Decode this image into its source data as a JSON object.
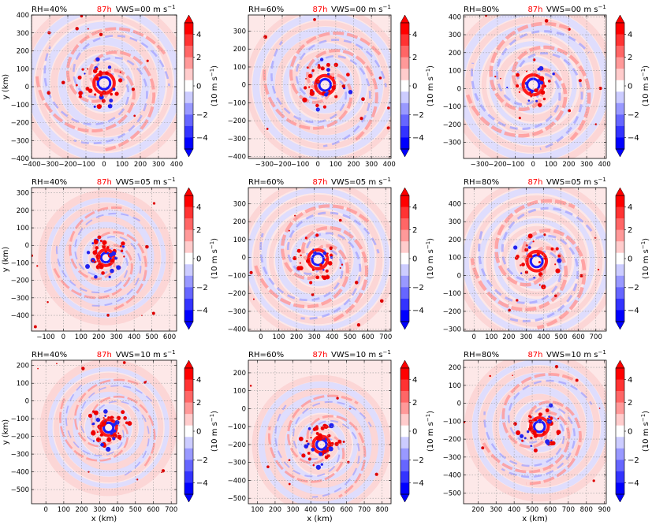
{
  "figure": {
    "colorbar": {
      "ticks": [
        "4",
        "2",
        "0",
        "−2",
        "−4"
      ],
      "label_prefix": "(10 m s",
      "label_exp": "−1",
      "label_suffix": ")",
      "colors": [
        "#ff0000",
        "#ff3333",
        "#ff6666",
        "#ff9999",
        "#ffcccc",
        "#ffffff",
        "#ccccff",
        "#9999ff",
        "#6666ff",
        "#3333ff",
        "#0000ff"
      ]
    },
    "vws_unit": "m s",
    "vws_exp": "−1"
  },
  "chart_data": [
    {
      "type": "heatmap",
      "rh": "RH=40%",
      "time": "87h",
      "vws": "VWS=00",
      "ylabel": "y (km)",
      "xlabel": "",
      "xlim": [
        -400,
        400
      ],
      "ylim": [
        -400,
        400
      ],
      "xticks": [
        -400,
        -300,
        -200,
        -100,
        0,
        100,
        200,
        300,
        400
      ],
      "yticks": [
        -400,
        -300,
        -200,
        -100,
        0,
        100,
        200,
        300,
        400
      ],
      "center": [
        0,
        20
      ],
      "extent": 400,
      "dense": 0.8
    },
    {
      "type": "heatmap",
      "rh": "RH=60%",
      "time": "87h",
      "vws": "VWS=00",
      "ylabel": "",
      "xlabel": "",
      "xlim": [
        -390,
        410
      ],
      "ylim": [
        -410,
        390
      ],
      "xticks": [
        -300,
        -200,
        -100,
        0,
        100,
        200,
        300,
        400
      ],
      "yticks": [
        -400,
        -300,
        -200,
        -100,
        0,
        100,
        200,
        300
      ],
      "center": [
        40,
        0
      ],
      "extent": 380,
      "dense": 0.8
    },
    {
      "type": "heatmap",
      "rh": "RH=80%",
      "time": "87h",
      "vws": "VWS=00",
      "ylabel": "",
      "xlabel": "",
      "xlim": [
        -390,
        410
      ],
      "ylim": [
        -390,
        410
      ],
      "xticks": [
        -300,
        -200,
        -100,
        0,
        100,
        200,
        300,
        400
      ],
      "yticks": [
        -300,
        -200,
        -100,
        0,
        100,
        200,
        300,
        400
      ],
      "center": [
        0,
        20
      ],
      "extent": 400,
      "dense": 1.0
    },
    {
      "type": "heatmap",
      "rh": "RH=40%",
      "time": "87h",
      "vws": "VWS=05",
      "ylabel": "y (km)",
      "xlabel": "",
      "xlim": [
        -180,
        640
      ],
      "ylim": [
        -490,
        330
      ],
      "xticks": [
        -100,
        0,
        100,
        200,
        300,
        400,
        500,
        600
      ],
      "yticks": [
        -400,
        -300,
        -200,
        -100,
        0,
        100,
        200,
        300
      ],
      "center": [
        240,
        -70
      ],
      "extent": 320,
      "dense": 0.5
    },
    {
      "type": "heatmap",
      "rh": "RH=60%",
      "time": "87h",
      "vws": "VWS=05",
      "ylabel": "",
      "xlabel": "",
      "xlim": [
        -70,
        730
      ],
      "ylim": [
        -410,
        390
      ],
      "xticks": [
        0,
        100,
        200,
        300,
        400,
        500,
        600,
        700
      ],
      "yticks": [
        -400,
        -300,
        -200,
        -100,
        0,
        100,
        200,
        300
      ],
      "center": [
        320,
        -10
      ],
      "extent": 380,
      "dense": 0.9
    },
    {
      "type": "heatmap",
      "rh": "RH=80%",
      "time": "87h",
      "vws": "VWS=05",
      "ylabel": "",
      "xlabel": "",
      "xlim": [
        -60,
        760
      ],
      "ylim": [
        -310,
        490
      ],
      "xticks": [
        0,
        100,
        200,
        300,
        400,
        500,
        600,
        700
      ],
      "yticks": [
        -300,
        -200,
        -100,
        0,
        100,
        200,
        300,
        400
      ],
      "center": [
        360,
        80
      ],
      "extent": 400,
      "dense": 1.0
    },
    {
      "type": "heatmap",
      "rh": "RH=40%",
      "time": "87h",
      "vws": "VWS=10",
      "ylabel": "y (km)",
      "xlabel": "x (km)",
      "xlim": [
        -80,
        730
      ],
      "ylim": [
        -580,
        230
      ],
      "xticks": [
        0,
        100,
        200,
        300,
        400,
        500,
        600,
        700
      ],
      "yticks": [
        -500,
        -400,
        -300,
        -200,
        -100,
        0,
        100,
        200
      ],
      "center": [
        350,
        -150
      ],
      "extent": 320,
      "dense": 0.35
    },
    {
      "type": "heatmap",
      "rh": "RH=60%",
      "time": "87h",
      "vws": "VWS=10",
      "ylabel": "",
      "xlabel": "x (km)",
      "xlim": [
        50,
        850
      ],
      "ylim": [
        -530,
        270
      ],
      "xticks": [
        100,
        200,
        300,
        400,
        500,
        600,
        700,
        800
      ],
      "yticks": [
        -500,
        -400,
        -300,
        -200,
        -100,
        0,
        100,
        200
      ],
      "center": [
        460,
        -200
      ],
      "extent": 330,
      "dense": 0.5
    },
    {
      "type": "heatmap",
      "rh": "RH=80%",
      "time": "87h",
      "vws": "VWS=10",
      "ylabel": "",
      "xlabel": "x (km)",
      "xlim": [
        120,
        910
      ],
      "ylim": [
        -560,
        240
      ],
      "xticks": [
        200,
        300,
        400,
        500,
        600,
        700,
        800,
        900
      ],
      "yticks": [
        -500,
        -400,
        -300,
        -200,
        -100,
        0,
        100,
        200
      ],
      "center": [
        540,
        -130
      ],
      "extent": 350,
      "dense": 0.7
    }
  ]
}
